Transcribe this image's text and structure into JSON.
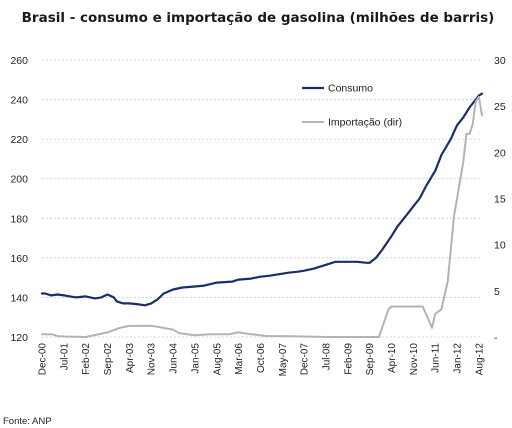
{
  "chart_data": {
    "type": "line",
    "title": "Brasil - consumo e importação de gasolina (milhões de barris)",
    "source": "Fonte: ANP",
    "grid": true,
    "legend_position": "top-right",
    "colors": {
      "consumo": "#1c2d6b",
      "importacao": "#b3b3b3"
    },
    "y_left": {
      "min": 120,
      "max": 260,
      "ticks": [
        "120",
        "140",
        "160",
        "180",
        "200",
        "220",
        "240",
        "260"
      ]
    },
    "y_right": {
      "min": 0,
      "max": 30,
      "ticks": [
        "-",
        "5",
        "10",
        "15",
        "20",
        "25",
        "30"
      ]
    },
    "x_tick_labels": [
      "Dec-00",
      "Jul-01",
      "Feb-02",
      "Sep-02",
      "Apr-03",
      "Nov-03",
      "Jun-04",
      "Jan-05",
      "Aug-05",
      "Mar-06",
      "Oct-06",
      "May-07",
      "Dec-07",
      "Jul-08",
      "Feb-09",
      "Sep-09",
      "Apr-10",
      "Nov-10",
      "Jun-11",
      "Jan-12",
      "Aug-12"
    ],
    "series": [
      {
        "name": "Consumo",
        "axis": "left",
        "points": [
          [
            "Dec-00",
            142
          ],
          [
            "Jan-01",
            142
          ],
          [
            "Mar-01",
            141
          ],
          [
            "May-01",
            141.5
          ],
          [
            "Jul-01",
            141
          ],
          [
            "Sep-01",
            140.5
          ],
          [
            "Nov-01",
            140
          ],
          [
            "Feb-02",
            140.5
          ],
          [
            "May-02",
            139.5
          ],
          [
            "Jul-02",
            140
          ],
          [
            "Sep-02",
            141.5
          ],
          [
            "Nov-02",
            140
          ],
          [
            "Dec-02",
            138
          ],
          [
            "Feb-03",
            137
          ],
          [
            "Apr-03",
            137
          ],
          [
            "Jul-03",
            136.5
          ],
          [
            "Sep-03",
            136
          ],
          [
            "Nov-03",
            137
          ],
          [
            "Jan-04",
            139
          ],
          [
            "Mar-04",
            142
          ],
          [
            "Jun-04",
            144
          ],
          [
            "Sep-04",
            145
          ],
          [
            "Jan-05",
            145.5
          ],
          [
            "Apr-05",
            146
          ],
          [
            "Aug-05",
            147.5
          ],
          [
            "Jan-06",
            148
          ],
          [
            "Mar-06",
            149
          ],
          [
            "Jul-06",
            149.5
          ],
          [
            "Oct-06",
            150.5
          ],
          [
            "Jan-07",
            151
          ],
          [
            "May-07",
            152
          ],
          [
            "Jul-07",
            152.5
          ],
          [
            "Oct-07",
            153
          ],
          [
            "Dec-07",
            153.5
          ],
          [
            "Mar-08",
            154.5
          ],
          [
            "Jul-08",
            156.5
          ],
          [
            "Oct-08",
            158
          ],
          [
            "Feb-09",
            158
          ],
          [
            "May-09",
            158
          ],
          [
            "Aug-09",
            157.5
          ],
          [
            "Sep-09",
            157.5
          ],
          [
            "Nov-09",
            160
          ],
          [
            "Jan-10",
            164
          ],
          [
            "Apr-10",
            171
          ],
          [
            "Jun-10",
            176
          ],
          [
            "Aug-10",
            180
          ],
          [
            "Nov-10",
            186
          ],
          [
            "Jan-11",
            190
          ],
          [
            "Mar-11",
            196
          ],
          [
            "Jun-11",
            204
          ],
          [
            "Aug-11",
            212
          ],
          [
            "Nov-11",
            220
          ],
          [
            "Jan-12",
            227
          ],
          [
            "Mar-12",
            231
          ],
          [
            "May-12",
            236
          ],
          [
            "Jul-12",
            240
          ],
          [
            "Aug-12",
            242
          ],
          [
            "Sep-12",
            243
          ]
        ]
      },
      {
        "name": "Importação (dir)",
        "axis": "right",
        "points": [
          [
            "Dec-00",
            0.3
          ],
          [
            "Mar-01",
            0.3
          ],
          [
            "May-01",
            0.1
          ],
          [
            "Jul-01",
            0.05
          ],
          [
            "Feb-02",
            0
          ],
          [
            "Sep-02",
            0.5
          ],
          [
            "Jan-03",
            1
          ],
          [
            "Apr-03",
            1.2
          ],
          [
            "Nov-03",
            1.2
          ],
          [
            "Jan-04",
            1.1
          ],
          [
            "Jun-04",
            0.8
          ],
          [
            "Aug-04",
            0.4
          ],
          [
            "Jan-05",
            0.2
          ],
          [
            "Jun-05",
            0.3
          ],
          [
            "Dec-05",
            0.3
          ],
          [
            "Mar-06",
            0.5
          ],
          [
            "Jul-06",
            0.3
          ],
          [
            "Dec-06",
            0.1
          ],
          [
            "Jun-07",
            0.1
          ],
          [
            "Dec-07",
            0.05
          ],
          [
            "Jul-08",
            0
          ],
          [
            "Feb-09",
            0
          ],
          [
            "Sep-09",
            0
          ],
          [
            "Dec-09",
            0
          ],
          [
            "Mar-10",
            3
          ],
          [
            "Apr-10",
            3.3
          ],
          [
            "Nov-10",
            3.3
          ],
          [
            "Feb-11",
            3.3
          ],
          [
            "May-11",
            1
          ],
          [
            "Jun-11",
            2.5
          ],
          [
            "Aug-11",
            3
          ],
          [
            "Oct-11",
            6
          ],
          [
            "Dec-11",
            13
          ],
          [
            "Mar-12",
            19
          ],
          [
            "Apr-12",
            22
          ],
          [
            "May-12",
            22
          ],
          [
            "Jun-12",
            23
          ],
          [
            "Jul-12",
            25.5
          ],
          [
            "Aug-12",
            26
          ],
          [
            "Sep-12",
            24
          ]
        ]
      }
    ]
  }
}
